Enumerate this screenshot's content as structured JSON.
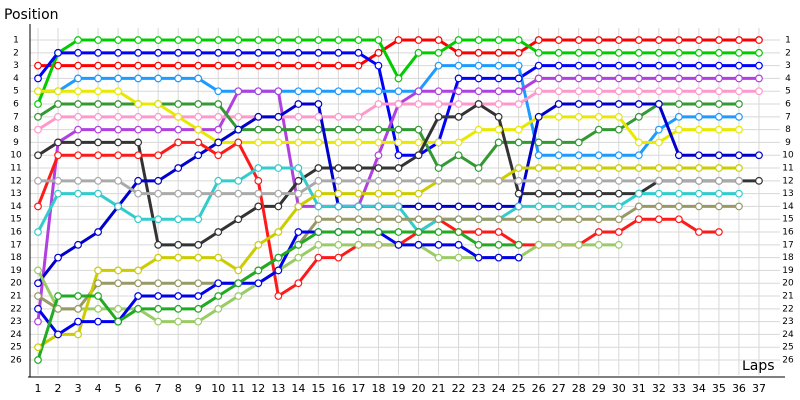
{
  "chart_data": {
    "type": "line",
    "y_label": "Position",
    "x_label": "Laps",
    "xlim": [
      0.6,
      38.05
    ],
    "ylim": [
      27.17,
      0.06
    ],
    "xticks": [
      1,
      2,
      3,
      4,
      5,
      6,
      7,
      8,
      9,
      10,
      11,
      12,
      13,
      14,
      15,
      16,
      17,
      18,
      19,
      20,
      21,
      22,
      23,
      24,
      25,
      26,
      27,
      28,
      29,
      30,
      31,
      32,
      33,
      34,
      35,
      36,
      37
    ],
    "yticks": [
      1,
      2,
      3,
      4,
      5,
      6,
      7,
      8,
      9,
      10,
      11,
      12,
      13,
      14,
      15,
      16,
      17,
      18,
      19,
      20,
      21,
      22,
      23,
      24,
      25,
      26
    ],
    "grid": true,
    "marker_fill": "#ffffff",
    "x": [
      1,
      2,
      3,
      4,
      5,
      6,
      7,
      8,
      9,
      10,
      11,
      12,
      13,
      14,
      15,
      16,
      17,
      18,
      19,
      20,
      21,
      22,
      23,
      24,
      25,
      26,
      27,
      28,
      29,
      30,
      31,
      32,
      33,
      34,
      35,
      36,
      37
    ],
    "series": [
      {
        "color": "#ff0000",
        "values": [
          3,
          3,
          3,
          3,
          3,
          3,
          3,
          3,
          3,
          3,
          3,
          3,
          3,
          3,
          3,
          3,
          3,
          2,
          1,
          1,
          1,
          2,
          2,
          2,
          2,
          1,
          1,
          1,
          1,
          1,
          1,
          1,
          1,
          1,
          1,
          1,
          1
        ]
      },
      {
        "color": "#00cc00",
        "values": [
          6,
          2,
          1,
          1,
          1,
          1,
          1,
          1,
          1,
          1,
          1,
          1,
          1,
          1,
          1,
          1,
          1,
          1,
          4,
          2,
          2,
          1,
          1,
          1,
          1,
          2,
          2,
          2,
          2,
          2,
          2,
          2,
          2,
          2,
          2,
          2,
          2
        ]
      },
      {
        "color": "#0000ff",
        "values": [
          4,
          2,
          2,
          2,
          2,
          2,
          2,
          2,
          2,
          2,
          2,
          2,
          2,
          2,
          2,
          2,
          2,
          3,
          10,
          10,
          9,
          4,
          4,
          4,
          4,
          3,
          3,
          3,
          3,
          3,
          3,
          3,
          3,
          3,
          3,
          3,
          3
        ]
      },
      {
        "color": "#1e9bff",
        "values": [
          5,
          5,
          4,
          4,
          4,
          4,
          4,
          4,
          4,
          5,
          5,
          5,
          5,
          5,
          5,
          5,
          5,
          5,
          5,
          5,
          3,
          3,
          3,
          3,
          3,
          10,
          10,
          10,
          10,
          10,
          10,
          8,
          7,
          7,
          7,
          7,
          null
        ]
      },
      {
        "color": "#b040e0",
        "values": [
          23,
          9,
          8,
          8,
          8,
          8,
          8,
          8,
          8,
          8,
          5,
          5,
          5,
          14,
          14,
          14,
          14,
          10,
          6,
          5,
          5,
          5,
          5,
          5,
          5,
          4,
          4,
          4,
          4,
          4,
          4,
          4,
          4,
          4,
          4,
          4,
          4
        ]
      },
      {
        "color": "#ff99cc",
        "values": [
          8,
          7,
          7,
          7,
          7,
          7,
          7,
          7,
          7,
          7,
          7,
          7,
          7,
          7,
          7,
          7,
          7,
          6,
          6,
          6,
          6,
          6,
          6,
          6,
          6,
          5,
          5,
          5,
          5,
          5,
          5,
          5,
          5,
          5,
          5,
          5,
          5
        ]
      },
      {
        "color": "#339933",
        "values": [
          7,
          6,
          6,
          6,
          6,
          6,
          6,
          6,
          6,
          6,
          8,
          8,
          8,
          8,
          8,
          8,
          8,
          8,
          8,
          8,
          11,
          10,
          11,
          9,
          9,
          9,
          9,
          9,
          8,
          8,
          7,
          6,
          6,
          6,
          6,
          6,
          null
        ]
      },
      {
        "color": "#e8e800",
        "values": [
          5,
          5,
          5,
          5,
          5,
          6,
          6,
          7,
          8,
          9,
          9,
          9,
          9,
          9,
          9,
          9,
          9,
          9,
          9,
          9,
          9,
          9,
          8,
          8,
          8,
          7,
          7,
          7,
          7,
          7,
          9,
          9,
          8,
          8,
          8,
          8,
          null
        ]
      },
      {
        "color": "#333333",
        "values": [
          10,
          9,
          9,
          9,
          9,
          9,
          17,
          17,
          17,
          16,
          15,
          14,
          14,
          12,
          11,
          11,
          11,
          11,
          11,
          10,
          7,
          7,
          6,
          7,
          13,
          13,
          13,
          13,
          13,
          13,
          13,
          12,
          12,
          12,
          12,
          12,
          12
        ]
      },
      {
        "color": "#0000cc",
        "values": [
          20,
          18,
          17,
          16,
          14,
          12,
          12,
          11,
          10,
          9,
          8,
          7,
          7,
          6,
          6,
          14,
          14,
          14,
          14,
          14,
          14,
          14,
          14,
          14,
          14,
          7,
          6,
          6,
          6,
          6,
          6,
          6,
          10,
          10,
          10,
          10,
          10
        ]
      },
      {
        "color": "#ff1a1a",
        "values": [
          14,
          10,
          10,
          10,
          10,
          10,
          10,
          9,
          9,
          10,
          9,
          12,
          21,
          20,
          18,
          18,
          17,
          17,
          17,
          16,
          15,
          16,
          16,
          16,
          17,
          17,
          17,
          17,
          16,
          16,
          15,
          15,
          15,
          16,
          16,
          null,
          null
        ]
      },
      {
        "color": "#33cccc",
        "values": [
          16,
          13,
          13,
          13,
          14,
          15,
          15,
          15,
          15,
          12,
          12,
          11,
          11,
          11,
          14,
          14,
          14,
          14,
          14,
          16,
          15,
          15,
          15,
          15,
          14,
          14,
          14,
          14,
          14,
          14,
          13,
          13,
          13,
          13,
          13,
          13,
          null
        ]
      },
      {
        "color": "#99cc66",
        "values": [
          19,
          22,
          22,
          22,
          22,
          22,
          23,
          23,
          23,
          22,
          21,
          20,
          19,
          18,
          17,
          17,
          17,
          17,
          17,
          17,
          18,
          18,
          18,
          18,
          18,
          17,
          17,
          17,
          17,
          17,
          null,
          null,
          null,
          null,
          null,
          null,
          null
        ]
      },
      {
        "color": "#999966",
        "values": [
          21,
          22,
          22,
          20,
          20,
          20,
          20,
          20,
          20,
          20,
          20,
          19,
          18,
          17,
          15,
          15,
          15,
          15,
          15,
          15,
          15,
          15,
          15,
          15,
          15,
          15,
          15,
          15,
          15,
          15,
          14,
          14,
          14,
          14,
          14,
          14,
          null
        ]
      },
      {
        "color": "#cccc00",
        "values": [
          25,
          24,
          24,
          19,
          19,
          19,
          18,
          18,
          18,
          18,
          19,
          17,
          16,
          14,
          13,
          13,
          13,
          13,
          13,
          13,
          12,
          12,
          12,
          12,
          11,
          11,
          11,
          11,
          11,
          11,
          11,
          11,
          11,
          11,
          11,
          11,
          null
        ]
      },
      {
        "color": "#0000ee",
        "values": [
          22,
          24,
          23,
          23,
          23,
          21,
          21,
          21,
          21,
          20,
          20,
          20,
          19,
          16,
          16,
          16,
          16,
          16,
          17,
          17,
          17,
          17,
          18,
          18,
          18,
          null,
          null,
          null,
          null,
          null,
          null,
          null,
          null,
          null,
          null,
          null,
          null
        ]
      },
      {
        "color": "#22aa22",
        "values": [
          26,
          21,
          21,
          21,
          23,
          22,
          22,
          22,
          22,
          21,
          20,
          19,
          18,
          17,
          16,
          16,
          16,
          16,
          16,
          16,
          16,
          16,
          17,
          17,
          17,
          null,
          null,
          null,
          null,
          null,
          null,
          null,
          null,
          null,
          null,
          null,
          null
        ]
      },
      {
        "color": "#aaaaaa",
        "values": [
          12,
          12,
          12,
          12,
          12,
          13,
          13,
          13,
          13,
          13,
          13,
          13,
          13,
          13,
          12,
          12,
          12,
          12,
          12,
          12,
          12,
          12,
          12,
          12,
          12,
          12,
          12,
          12,
          12,
          12,
          12,
          12,
          12,
          12,
          12,
          12,
          null
        ]
      }
    ]
  }
}
